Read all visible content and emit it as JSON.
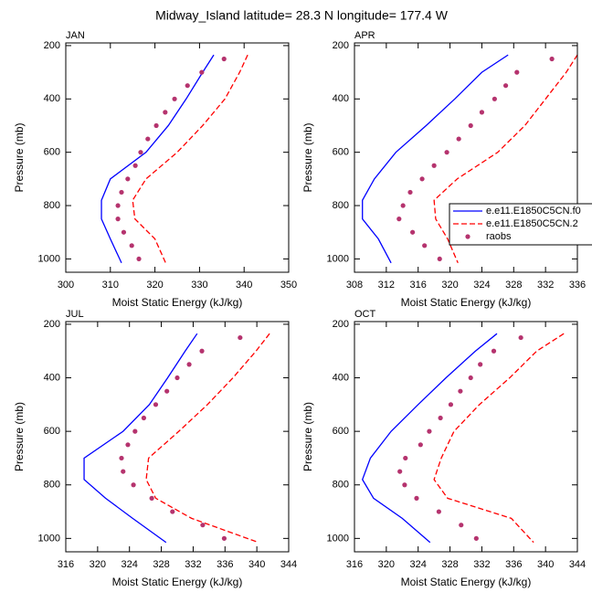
{
  "title": "Midway_Island  latitude= 28.3 N longitude= 177.4 W",
  "chart_data": [
    {
      "type": "line",
      "title": "JAN",
      "xlabel": "Moist Static Energy (kJ/kg)",
      "ylabel": "Pressure (mb)",
      "xlim": [
        300,
        350
      ],
      "xticks": [
        300,
        310,
        320,
        330,
        340,
        350
      ],
      "ylim": [
        1050,
        190
      ],
      "yticks": [
        200,
        400,
        600,
        800,
        1000
      ],
      "series": [
        {
          "color": "#0000ff",
          "style": "solid",
          "y": [
            235,
            300,
            400,
            500,
            600,
            700,
            780,
            850,
            925,
            1015
          ],
          "values": [
            333.2,
            330.7,
            327,
            323,
            318,
            310,
            308,
            308,
            310,
            312.5
          ]
        },
        {
          "color": "#ff0000",
          "style": "dashed",
          "y": [
            235,
            300,
            400,
            500,
            600,
            700,
            780,
            850,
            925,
            1015
          ],
          "values": [
            340.8,
            339,
            335.7,
            330.7,
            325,
            318,
            315,
            315.5,
            320,
            322.4
          ]
        },
        {
          "color": "#b5336e",
          "style": "markers",
          "y": [
            250,
            300,
            350,
            400,
            450,
            500,
            550,
            600,
            650,
            700,
            750,
            800,
            850,
            900,
            950,
            1000
          ],
          "values": [
            335.5,
            330.5,
            327.3,
            324.4,
            322.3,
            320.3,
            318.4,
            316.8,
            315.6,
            313.9,
            312.5,
            311.7,
            311.7,
            313,
            314.8,
            316.4
          ]
        }
      ]
    },
    {
      "type": "line",
      "title": "APR",
      "xlabel": "Moist Static Energy (kJ/kg)",
      "ylabel": "Pressure (mb)",
      "xlim": [
        308,
        336
      ],
      "xticks": [
        308,
        312,
        316,
        320,
        324,
        328,
        332,
        336
      ],
      "ylim": [
        1050,
        190
      ],
      "yticks": [
        200,
        400,
        600,
        800,
        1000
      ],
      "legend": "right",
      "series": [
        {
          "name": "e.e11.E1850C5CN.f0",
          "color": "#0000ff",
          "style": "solid",
          "y": [
            235,
            300,
            400,
            500,
            600,
            700,
            780,
            850,
            925,
            1015
          ],
          "values": [
            327.3,
            324,
            320.6,
            317,
            313.2,
            310.5,
            309,
            309,
            311,
            312.6
          ]
        },
        {
          "name": "e.e11.E1850C5CN.2",
          "color": "#ff0000",
          "style": "dashed",
          "y": [
            235,
            300,
            400,
            500,
            600,
            700,
            780,
            850,
            925,
            1015
          ],
          "values": [
            336,
            334.6,
            332,
            329.4,
            326,
            320.9,
            318,
            318.2,
            319.7,
            321
          ]
        },
        {
          "name": "raobs",
          "color": "#b5336e",
          "style": "markers",
          "y": [
            250,
            300,
            350,
            400,
            450,
            500,
            550,
            600,
            650,
            700,
            750,
            800,
            850,
            900,
            950,
            1000
          ],
          "values": [
            332.8,
            328.4,
            327,
            325.6,
            324,
            322.6,
            321.1,
            319.6,
            318,
            316.5,
            315,
            314.1,
            313.6,
            315.3,
            316.8,
            318.7
          ]
        }
      ]
    },
    {
      "type": "line",
      "title": "JUL",
      "xlabel": "Moist Static Energy (kJ/kg)",
      "ylabel": "Pressure (mb)",
      "xlim": [
        316,
        344
      ],
      "xticks": [
        316,
        320,
        324,
        328,
        332,
        336,
        340,
        344
      ],
      "ylim": [
        1050,
        190
      ],
      "yticks": [
        200,
        400,
        600,
        800,
        1000
      ],
      "series": [
        {
          "color": "#0000ff",
          "style": "solid",
          "y": [
            235,
            300,
            400,
            500,
            600,
            700,
            780,
            850,
            925,
            1015
          ],
          "values": [
            332.5,
            331,
            328.8,
            326.5,
            323.2,
            318.3,
            318.3,
            321,
            324.4,
            328.6
          ]
        },
        {
          "color": "#ff0000",
          "style": "dashed",
          "y": [
            235,
            300,
            400,
            500,
            600,
            700,
            780,
            850,
            925,
            1015
          ],
          "values": [
            341.6,
            339.9,
            337,
            333.8,
            330.2,
            326.4,
            326.1,
            327.3,
            331.8,
            340.2
          ]
        },
        {
          "color": "#b5336e",
          "style": "markers",
          "y": [
            250,
            300,
            350,
            400,
            450,
            500,
            550,
            600,
            650,
            700,
            750,
            800,
            850,
            900,
            950,
            1000
          ],
          "values": [
            337.9,
            333.1,
            331.5,
            330,
            328.7,
            327.3,
            325.8,
            324.7,
            323.8,
            323,
            323.2,
            324.5,
            326.8,
            329.4,
            333.2,
            335.9
          ]
        }
      ]
    },
    {
      "type": "line",
      "title": "OCT",
      "xlabel": "Moist Static Energy (kJ/kg)",
      "ylabel": "Pressure (mb)",
      "xlim": [
        316,
        344
      ],
      "xticks": [
        316,
        320,
        324,
        328,
        332,
        336,
        340,
        344
      ],
      "ylim": [
        1050,
        190
      ],
      "yticks": [
        200,
        400,
        600,
        800,
        1000
      ],
      "series": [
        {
          "color": "#0000ff",
          "style": "solid",
          "y": [
            235,
            300,
            400,
            500,
            600,
            700,
            780,
            850,
            925,
            1015
          ],
          "values": [
            333.9,
            331.2,
            327.5,
            324,
            320.6,
            318,
            317,
            318.4,
            322,
            325.5
          ]
        },
        {
          "color": "#ff0000",
          "style": "dashed",
          "y": [
            235,
            300,
            400,
            500,
            600,
            700,
            780,
            850,
            925,
            1015
          ],
          "values": [
            342.3,
            338.9,
            335.5,
            331.7,
            328.5,
            326.9,
            326,
            327.7,
            335.7,
            338.5
          ]
        },
        {
          "color": "#b5336e",
          "style": "markers",
          "y": [
            250,
            300,
            350,
            400,
            450,
            500,
            550,
            600,
            650,
            700,
            750,
            800,
            850,
            900,
            950,
            1000
          ],
          "values": [
            336.9,
            333.5,
            331.8,
            330.6,
            329.3,
            328.1,
            326.8,
            325.4,
            324.3,
            322.4,
            321.7,
            322.3,
            323.8,
            326.6,
            329.4,
            331.3
          ]
        }
      ]
    }
  ]
}
